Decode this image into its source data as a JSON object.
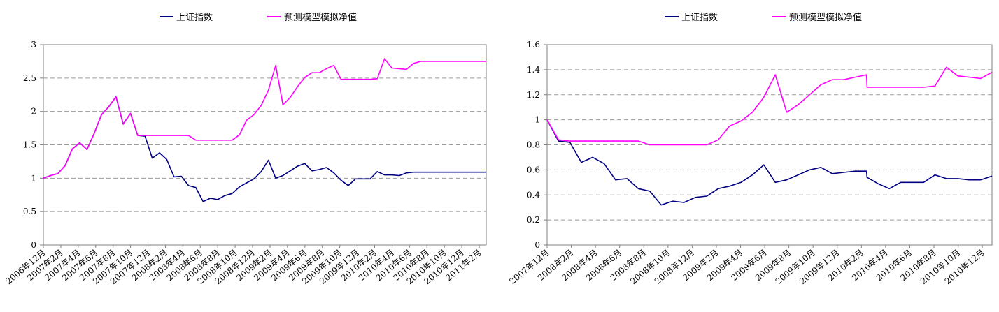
{
  "chart_data": [
    {
      "type": "line",
      "legend": [
        "上证指数",
        "预测模型模拟净值"
      ],
      "legend_position": "top",
      "ylim": [
        0,
        3
      ],
      "yticks": [
        "0",
        "0.5",
        "1",
        "1.5",
        "2",
        "2.5",
        "3"
      ],
      "ytick_values": [
        0,
        0.5,
        1,
        1.5,
        2,
        2.5,
        3
      ],
      "xtick_labels": [
        "2006年12月",
        "2007年2月",
        "2007年4月",
        "2007年6月",
        "2007年8月",
        "2007年10月",
        "2007年12月",
        "2008年2月",
        "2008年4月",
        "2008年6月",
        "2008年8月",
        "2008年10月",
        "2008年12月",
        "2009年2月",
        "2009年4月",
        "2009年6月",
        "2009年8月",
        "2009年10月",
        "2009年12月",
        "2010年2月",
        "2010年4月",
        "2010年6月",
        "2010年8月",
        "2010年10月",
        "2010年12月",
        "2011年2月"
      ],
      "grid": true,
      "colors": [
        "#000080",
        "#FF00FF"
      ],
      "series": [
        {
          "name": "上证指数",
          "x": [
            0,
            1,
            2,
            3,
            4,
            5,
            6,
            7,
            8,
            9,
            10,
            11,
            12,
            13,
            14,
            15,
            16,
            17,
            18,
            19,
            20,
            21,
            22,
            23,
            24,
            25,
            26,
            27,
            28,
            29,
            30,
            31,
            32,
            33,
            34,
            35,
            36,
            37,
            38,
            39,
            40,
            41,
            42,
            43,
            44,
            45,
            46,
            47,
            48,
            49,
            49.05,
            50,
            51,
            52,
            53,
            54,
            55,
            56,
            57,
            58,
            59,
            60,
            61
          ],
          "values": [
            1.0,
            1.04,
            1.07,
            1.19,
            1.44,
            1.53,
            1.43,
            1.67,
            1.95,
            2.07,
            2.22,
            1.81,
            1.97,
            1.64,
            1.63,
            1.3,
            1.38,
            1.28,
            1.02,
            1.03,
            0.89,
            0.86,
            0.65,
            0.7,
            0.68,
            0.74,
            0.77,
            0.87,
            0.93,
            0.99,
            1.1,
            1.27,
            1.0,
            1.04,
            1.11,
            1.18,
            1.22,
            1.11,
            1.13,
            1.16,
            1.08,
            0.97,
            0.89,
            0.99,
            0.99,
            0.99,
            1.1,
            1.05,
            1.05,
            1.04,
            1.04,
            1.08,
            1.09,
            1.09,
            1.09,
            1.09,
            1.09,
            1.09,
            1.09,
            1.09,
            1.09,
            1.09,
            1.09
          ]
        },
        {
          "name": "预测模型模拟净值",
          "x": [
            0,
            1,
            2,
            3,
            4,
            5,
            6,
            7,
            8,
            9,
            10,
            11,
            12,
            13,
            14,
            15,
            16,
            17,
            18,
            19,
            20,
            21,
            22,
            23,
            24,
            25,
            26,
            27,
            28,
            29,
            30,
            31,
            32,
            33,
            34,
            35,
            36,
            37,
            38,
            39,
            40,
            41,
            42,
            43,
            44,
            45,
            46,
            47,
            48,
            49,
            49.05,
            50,
            51,
            52,
            53,
            54,
            55,
            56,
            57,
            58,
            59,
            60,
            61
          ],
          "values": [
            1.0,
            1.04,
            1.07,
            1.19,
            1.44,
            1.53,
            1.43,
            1.67,
            1.95,
            2.07,
            2.22,
            1.81,
            1.97,
            1.64,
            1.64,
            1.64,
            1.64,
            1.64,
            1.64,
            1.64,
            1.64,
            1.57,
            1.57,
            1.57,
            1.57,
            1.57,
            1.57,
            1.65,
            1.87,
            1.95,
            2.09,
            2.32,
            2.69,
            2.1,
            2.21,
            2.37,
            2.51,
            2.58,
            2.58,
            2.64,
            2.69,
            2.48,
            2.48,
            2.48,
            2.48,
            2.48,
            2.49,
            2.79,
            2.65,
            2.64,
            2.64,
            2.63,
            2.72,
            2.75,
            2.75,
            2.75,
            2.75,
            2.75,
            2.75,
            2.75,
            2.75,
            2.75,
            2.75
          ]
        }
      ]
    },
    {
      "type": "line",
      "legend": [
        "上证指数",
        "预测模型模拟净值"
      ],
      "legend_position": "top",
      "ylim": [
        0,
        1.6
      ],
      "yticks": [
        "0",
        "0.2",
        "0.4",
        "0.6",
        "0.8",
        "1",
        "1.2",
        "1.4",
        "1.6"
      ],
      "ytick_values": [
        0,
        0.2,
        0.4,
        0.6,
        0.8,
        1.0,
        1.2,
        1.4,
        1.6
      ],
      "xtick_labels": [
        "2007年12月",
        "2008年2月",
        "2008年4月",
        "2008年6月",
        "2008年8月",
        "2008年10月",
        "2008年12月",
        "2009年2月",
        "2009年4月",
        "2009年6月",
        "2009年8月",
        "2009年10月",
        "2009年12月",
        "2010年2月",
        "2010年4月",
        "2010年6月",
        "2010年8月",
        "2010年10月",
        "2010年12月"
      ],
      "grid": true,
      "colors": [
        "#000080",
        "#FF00FF"
      ],
      "series": [
        {
          "name": "上证指数",
          "x": [
            0,
            1,
            2,
            3,
            4,
            5,
            6,
            7,
            8,
            9,
            10,
            11,
            12,
            13,
            14,
            15,
            16,
            17,
            18,
            19,
            20,
            21,
            22,
            23,
            24,
            25,
            26,
            27,
            28,
            28.05,
            29,
            30,
            31,
            32,
            33,
            34,
            35,
            36,
            37,
            38,
            39
          ],
          "values": [
            1.0,
            0.83,
            0.82,
            0.66,
            0.7,
            0.65,
            0.52,
            0.53,
            0.45,
            0.43,
            0.32,
            0.35,
            0.34,
            0.38,
            0.39,
            0.45,
            0.47,
            0.5,
            0.56,
            0.64,
            0.5,
            0.52,
            0.56,
            0.6,
            0.62,
            0.57,
            0.58,
            0.59,
            0.59,
            0.54,
            0.49,
            0.45,
            0.5,
            0.5,
            0.5,
            0.56,
            0.53,
            0.53,
            0.52,
            0.52,
            0.55
          ]
        },
        {
          "name": "预测模型模拟净值",
          "x": [
            0,
            1,
            2,
            3,
            4,
            5,
            6,
            7,
            8,
            9,
            10,
            11,
            12,
            13,
            14,
            15,
            16,
            17,
            18,
            19,
            20,
            21,
            22,
            23,
            24,
            25,
            26,
            27,
            28,
            28.05,
            29,
            30,
            31,
            32,
            33,
            34,
            35,
            36,
            37,
            38,
            39
          ],
          "values": [
            1.0,
            0.84,
            0.83,
            0.83,
            0.83,
            0.83,
            0.83,
            0.83,
            0.83,
            0.8,
            0.8,
            0.8,
            0.8,
            0.8,
            0.8,
            0.84,
            0.95,
            0.99,
            1.06,
            1.18,
            1.36,
            1.06,
            1.12,
            1.2,
            1.28,
            1.32,
            1.32,
            1.34,
            1.36,
            1.26,
            1.26,
            1.26,
            1.26,
            1.26,
            1.26,
            1.27,
            1.42,
            1.35,
            1.34,
            1.33,
            1.38
          ]
        }
      ]
    }
  ]
}
